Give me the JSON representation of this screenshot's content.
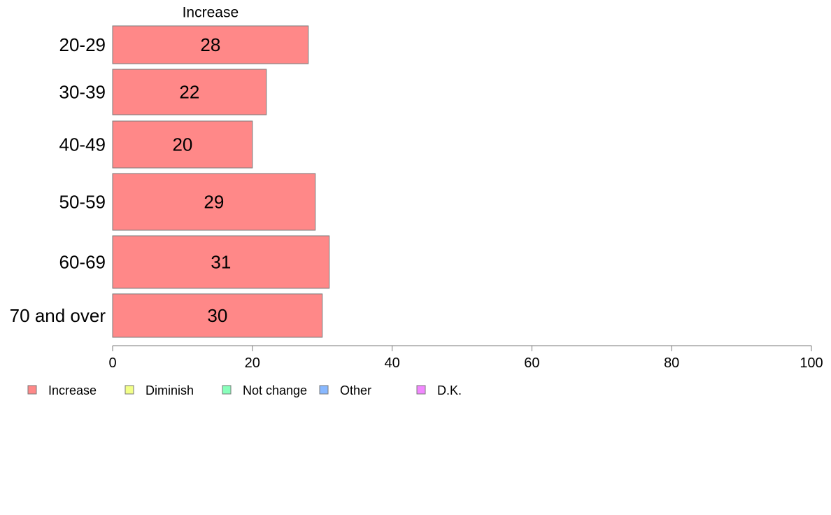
{
  "chart_data": {
    "type": "bar",
    "orientation": "horizontal",
    "stacked": true,
    "categories": [
      "20-29",
      "30-39",
      "40-49",
      "50-59",
      "60-69",
      "70 and over"
    ],
    "series": [
      {
        "name": "Increase",
        "values": [
          28,
          22,
          20,
          29,
          31,
          30
        ],
        "color": "#ff8888"
      }
    ],
    "xlim": [
      0,
      100
    ],
    "xticks": [
      0,
      20,
      40,
      60,
      80,
      100
    ],
    "grid": false,
    "legend": {
      "position": "bottom-left",
      "items": [
        {
          "label": "Increase",
          "color": "#ff8888"
        },
        {
          "label": "Diminish",
          "color": "#f2ff88"
        },
        {
          "label": "Not change",
          "color": "#88ffbb"
        },
        {
          "label": "Other",
          "color": "#88b8ff"
        },
        {
          "label": "D.K.",
          "color": "#f288ff"
        }
      ]
    }
  }
}
